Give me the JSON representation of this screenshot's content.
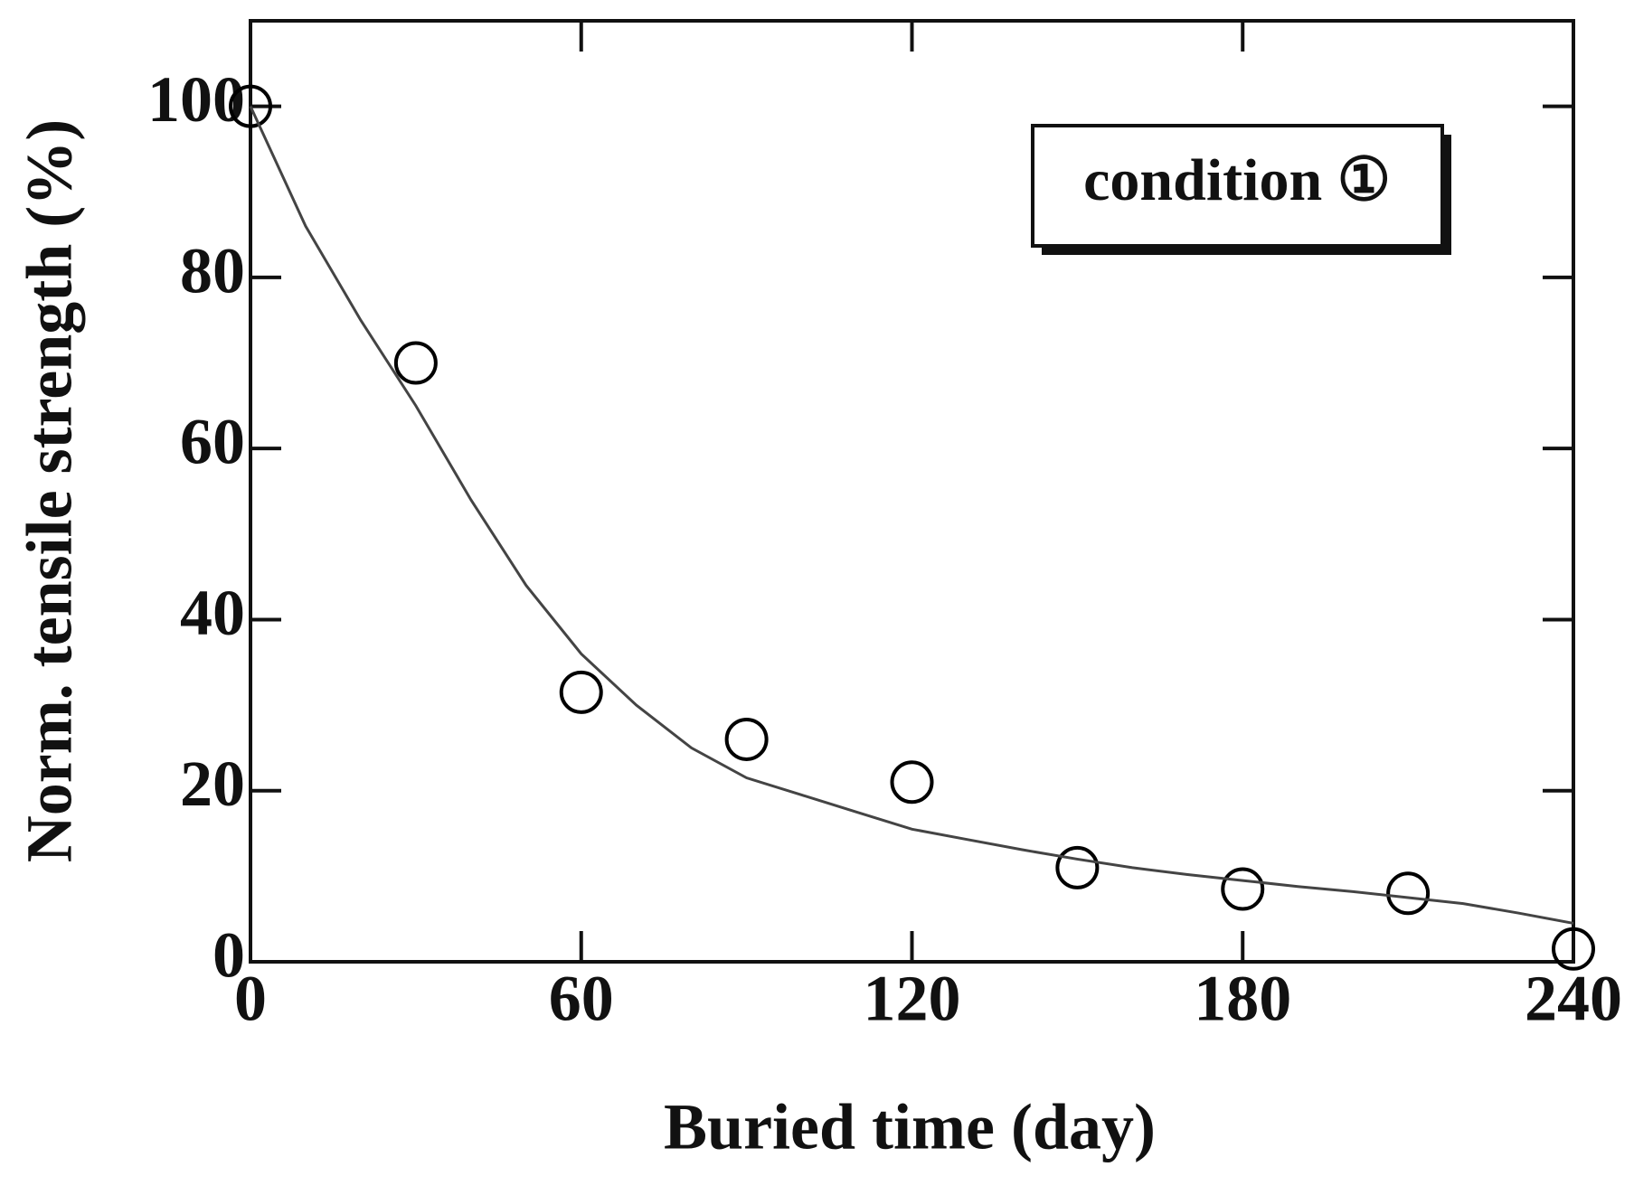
{
  "chart_data": {
    "type": "scatter",
    "xlabel": "Buried time (day)",
    "ylabel": "Norm. tensile strength (%)",
    "xlim": [
      0,
      240
    ],
    "xticks": [
      0,
      60,
      120,
      180,
      240
    ],
    "ylim": [
      0,
      110
    ],
    "yticks": [
      0,
      20,
      40,
      60,
      80,
      100
    ],
    "series": [
      {
        "name": "condition ①",
        "color": "#000000",
        "marker": "open-circle",
        "x": [
          0,
          30,
          60,
          90,
          120,
          150,
          180,
          210,
          240
        ],
        "values": [
          100,
          70,
          31.5,
          26,
          21,
          11,
          8.5,
          8,
          1.5
        ]
      },
      {
        "type": "line",
        "color": "#444444",
        "x": [
          0,
          10,
          20,
          30,
          40,
          50,
          60,
          70,
          80,
          90,
          100,
          110,
          120,
          130,
          140,
          150,
          160,
          170,
          180,
          190,
          200,
          210,
          220,
          230,
          240
        ],
        "values": [
          100,
          86,
          75,
          65,
          54,
          44,
          36,
          30,
          25,
          21.5,
          19.5,
          17.5,
          15.5,
          14.3,
          13.1,
          12,
          11,
          10.2,
          9.5,
          8.8,
          8.2,
          7.5,
          6.8,
          5.7,
          4.5
        ]
      }
    ]
  }
}
